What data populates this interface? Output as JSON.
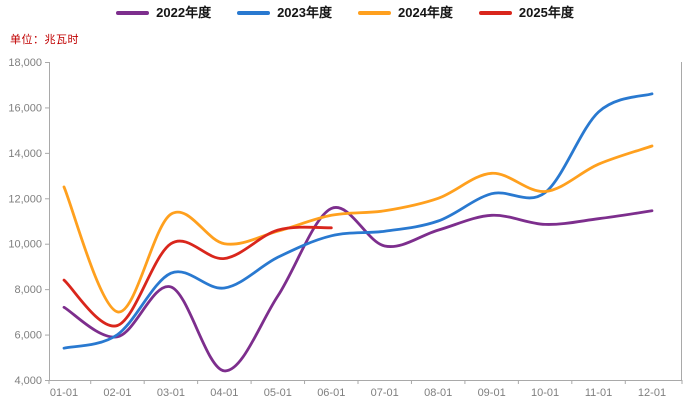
{
  "chart_data": {
    "type": "line",
    "title": "",
    "unit_label": "单位：兆瓦时",
    "unit_label_color": "#C00000",
    "smooth": true,
    "grid": false,
    "legend_position": "top-center",
    "categories": [
      "01-01",
      "02-01",
      "03-01",
      "04-01",
      "05-01",
      "06-01",
      "07-01",
      "08-01",
      "09-01",
      "10-01",
      "11-01",
      "12-01"
    ],
    "series": [
      {
        "name": "2022年度",
        "color": "#7D2E8D",
        "values": [
          7200,
          5900,
          8100,
          4400,
          7700,
          11550,
          9900,
          10600,
          11250,
          10850,
          11100,
          11450
        ]
      },
      {
        "name": "2023年度",
        "color": "#2979D0",
        "values": [
          5400,
          6000,
          8700,
          8050,
          9400,
          10350,
          10550,
          11000,
          12200,
          12250,
          15800,
          16600
        ]
      },
      {
        "name": "2024年度",
        "color": "#FFA01E",
        "values": [
          12500,
          7000,
          11300,
          10000,
          10550,
          11250,
          11450,
          12000,
          13100,
          12300,
          13500,
          14300
        ]
      },
      {
        "name": "2025年度",
        "color": "#D9261C",
        "values": [
          8400,
          6400,
          10000,
          9350,
          10600,
          10700
        ]
      }
    ],
    "xlabel": "",
    "ylabel": "",
    "ylim": [
      4000,
      18000
    ],
    "y_tick_step": 2000,
    "y_ticks": [
      "4,000",
      "6,000",
      "8,000",
      "10,000",
      "12,000",
      "14,000",
      "16,000",
      "18,000"
    ],
    "axis_color": "#A9A9A9",
    "tick_label_color": "#7F7F7F"
  }
}
